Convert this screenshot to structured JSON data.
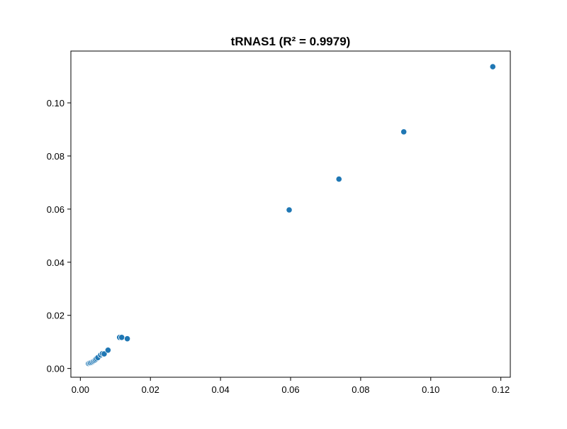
{
  "chart_data": {
    "type": "scatter",
    "title": "tRNAS1 (R² = 0.9979)",
    "xlabel": "",
    "ylabel": "",
    "xlim": [
      -0.0027,
      0.1227
    ],
    "ylim": [
      -0.0033,
      0.1195
    ],
    "xticks": [
      0.0,
      0.02,
      0.04,
      0.06,
      0.08,
      0.1,
      0.12
    ],
    "xtick_labels": [
      "0.00",
      "0.02",
      "0.04",
      "0.06",
      "0.08",
      "0.10",
      "0.12"
    ],
    "yticks": [
      0.0,
      0.02,
      0.04,
      0.06,
      0.08,
      0.1
    ],
    "ytick_labels": [
      "0.00",
      "0.02",
      "0.04",
      "0.06",
      "0.08",
      "0.10"
    ],
    "grid": false,
    "legend": "none",
    "marker_color": "#1f77b4",
    "series": [
      {
        "points": [
          {
            "x": 0.0023,
            "y": 0.0019
          },
          {
            "x": 0.0026,
            "y": 0.0021
          },
          {
            "x": 0.0029,
            "y": 0.0022
          },
          {
            "x": 0.0033,
            "y": 0.0024
          },
          {
            "x": 0.0037,
            "y": 0.0027
          },
          {
            "x": 0.004,
            "y": 0.003
          },
          {
            "x": 0.0043,
            "y": 0.0033
          },
          {
            "x": 0.0046,
            "y": 0.0037
          },
          {
            "x": 0.005,
            "y": 0.0041
          },
          {
            "x": 0.0058,
            "y": 0.0051
          },
          {
            "x": 0.0063,
            "y": 0.0056
          },
          {
            "x": 0.0068,
            "y": 0.0055
          },
          {
            "x": 0.0079,
            "y": 0.0069
          },
          {
            "x": 0.0112,
            "y": 0.0117
          },
          {
            "x": 0.0118,
            "y": 0.0117
          },
          {
            "x": 0.0134,
            "y": 0.0112
          },
          {
            "x": 0.0596,
            "y": 0.0597
          },
          {
            "x": 0.0738,
            "y": 0.0713
          },
          {
            "x": 0.0923,
            "y": 0.0891
          },
          {
            "x": 0.1177,
            "y": 0.1136
          }
        ]
      }
    ]
  }
}
